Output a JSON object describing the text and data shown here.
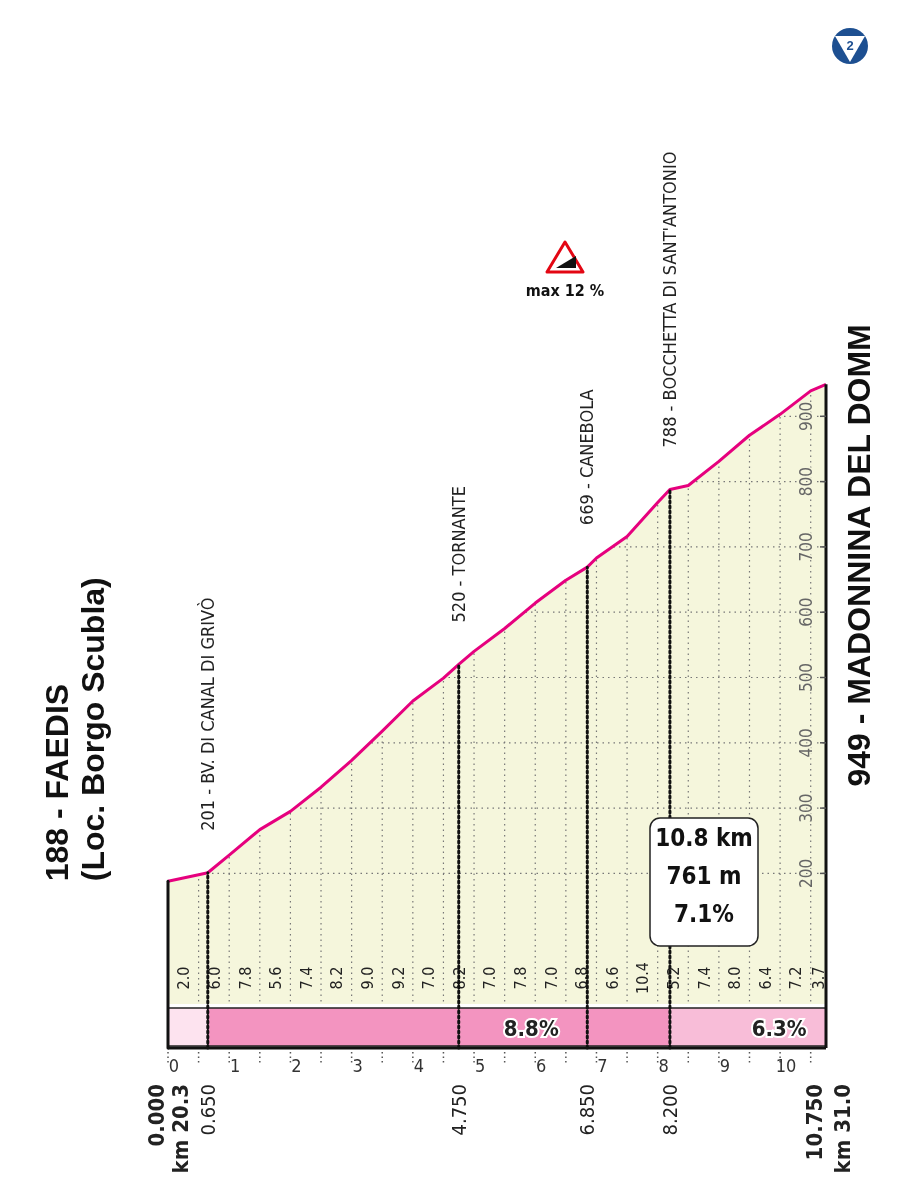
{
  "chart_data": {
    "type": "area",
    "x": [
      0,
      0.5,
      0.65,
      1,
      1.5,
      2,
      2.5,
      3,
      3.5,
      4,
      4.5,
      4.75,
      5,
      5.5,
      6,
      6.5,
      6.85,
      7,
      7.5,
      8,
      8.2,
      8.5,
      9,
      9.5,
      10,
      10.5,
      10.75
    ],
    "series": [
      {
        "color": "#e6007e",
        "values": [
          188,
          198,
          201,
          228,
          267,
          295,
          332,
          373,
          418,
          464,
          499,
          520,
          540,
          575,
          614,
          649,
          669,
          683,
          716,
          768,
          788,
          794,
          831,
          871,
          903,
          939,
          949
        ]
      }
    ],
    "xlim": [
      0,
      10.75
    ],
    "ylim": [
      0,
      1000
    ],
    "xticks": [
      0,
      {
        "value": 0.5,
        "label": null
      },
      1,
      {
        "value": 1.5,
        "label": null
      },
      2,
      {
        "value": 2.5,
        "label": null
      },
      3,
      {
        "value": 3.5,
        "label": null
      },
      4,
      {
        "value": 4.5,
        "label": null
      },
      5,
      {
        "value": 5.5,
        "label": null
      },
      6,
      {
        "value": 6.5,
        "label": null
      },
      7,
      {
        "value": 7.5,
        "label": null
      },
      8,
      {
        "value": 8.5,
        "label": null
      },
      9,
      {
        "value": 9.5,
        "label": null
      },
      10,
      {
        "value": 10.5,
        "label": null
      }
    ],
    "yticks": [
      200,
      300,
      400,
      500,
      600,
      700,
      800,
      900
    ],
    "grid": true,
    "ref_lines": [
      {
        "axis": "x",
        "value": 0,
        "label": "0.000",
        "line_style": "solid"
      },
      {
        "axis": "x",
        "value": 0.65,
        "label": "0.650",
        "line_style": "dotted"
      },
      {
        "axis": "x",
        "value": 4.75,
        "label": "4.750",
        "line_style": "dotted"
      },
      {
        "axis": "x",
        "value": 6.85,
        "label": "6.850",
        "line_style": "dotted"
      },
      {
        "axis": "x",
        "value": 8.2,
        "label": "8.200",
        "line_style": "dotted"
      }
    ],
    "annotations": [
      {
        "text": "188 - FAEDIS\n(Loc. Borgo Scubla)",
        "x": 0,
        "y": 188
      },
      {
        "text": "201 - BV. DI CANAL DI GRIVÒ",
        "x": 0.65,
        "y": 201
      },
      {
        "text": "520 - TORNANTE",
        "x": 4.75,
        "y": 520
      },
      {
        "text": "669 - CANEBOLA",
        "x": 6.85,
        "y": 669
      },
      {
        "text": "788 - BOCCHETTA DI SANT'ANTONIO",
        "x": 8.2,
        "y": 788
      },
      {
        "text": "949 - MADONNINA DEL DOMM",
        "x": 10.75,
        "y": 949
      },
      "max 12 %",
      "10.8 km",
      "761 m",
      "7.1%",
      "2",
      "8.8%",
      "6.3%",
      "km 20.3",
      "km 31.0",
      "10.750",
      "2.0",
      "6.0",
      "7.8",
      "5.6",
      "7.4",
      "8.2",
      "9.0",
      "9.2",
      "7.0",
      "8.2",
      "7.0",
      "7.8",
      "7.0",
      "6.8",
      "6.6",
      "10.4",
      "5.2",
      "7.4",
      "8.0",
      "6.4",
      "7.2",
      "3.7"
    ]
  }
}
